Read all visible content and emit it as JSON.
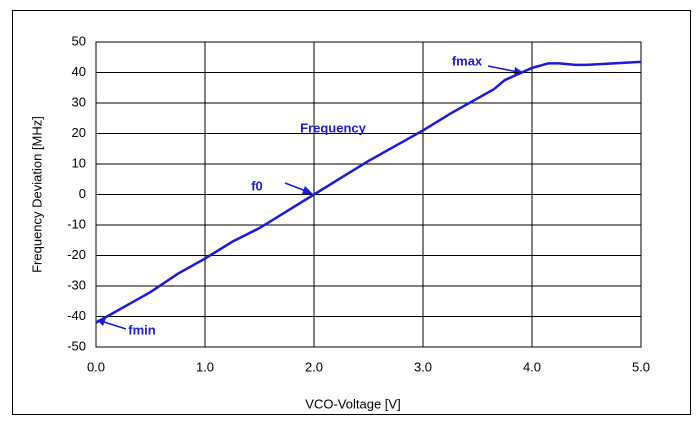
{
  "chart_data": {
    "type": "line",
    "x_label": "VCO-Voltage [V]",
    "y_label": "Frequency Deviation [MHz]",
    "annotations": [
      "Frequency",
      "fmax",
      "f0",
      "fmin"
    ],
    "series": [
      {
        "name": "Frequency",
        "color": "#1a1adc",
        "x": [
          0,
          0.25,
          0.5,
          0.75,
          1,
          1.25,
          1.5,
          1.75,
          2,
          2.25,
          2.5,
          2.75,
          3,
          3.25,
          3.5,
          3.65,
          3.75,
          4,
          4.15,
          4.25,
          4.4,
          4.5,
          5
        ],
        "values": [
          -42,
          -37,
          -32,
          -26,
          -21,
          -15.5,
          -11,
          -5.5,
          0,
          5.5,
          11,
          16,
          21,
          26.5,
          31.5,
          34.5,
          37.5,
          41.5,
          43,
          43,
          42.5,
          42.5,
          43.5
        ]
      }
    ],
    "xlim": [
      0,
      5
    ],
    "xticks": [
      {
        "value": 0,
        "label": "0.0"
      },
      {
        "value": 1,
        "label": "1.0"
      },
      {
        "value": 2,
        "label": "2.0"
      },
      {
        "value": 3,
        "label": "3.0"
      },
      {
        "value": 4,
        "label": "4.0"
      },
      {
        "value": 5,
        "label": "5.0"
      }
    ],
    "ylim": [
      -50,
      50
    ],
    "yticks": [
      -50,
      -40,
      -30,
      -20,
      -10,
      0,
      10,
      20,
      30,
      40,
      50
    ],
    "grid": true
  }
}
